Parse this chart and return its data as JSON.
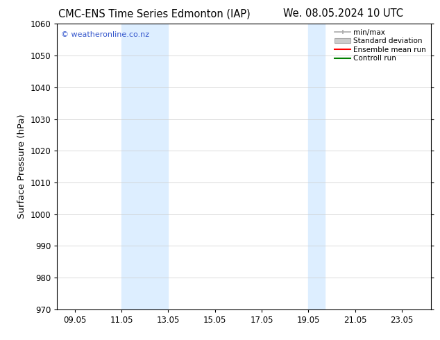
{
  "title_left": "CMC-ENS Time Series Edmonton (IAP)",
  "title_right": "We. 08.05.2024 10 UTC",
  "ylabel": "Surface Pressure (hPa)",
  "ylim": [
    970,
    1060
  ],
  "yticks": [
    970,
    980,
    990,
    1000,
    1010,
    1020,
    1030,
    1040,
    1050,
    1060
  ],
  "xlim_start": 8.3,
  "xlim_end": 24.3,
  "xticks": [
    9.05,
    11.05,
    13.05,
    15.05,
    17.05,
    19.05,
    21.05,
    23.05
  ],
  "xticklabels": [
    "09.05",
    "11.05",
    "13.05",
    "15.05",
    "17.05",
    "19.05",
    "21.05",
    "23.05"
  ],
  "shaded_regions": [
    {
      "xmin": 11.05,
      "xmax": 13.05
    },
    {
      "xmin": 19.05,
      "xmax": 19.75
    }
  ],
  "shaded_color": "#ddeeff",
  "watermark_text": "© weatheronline.co.nz",
  "watermark_color": "#3355cc",
  "legend_labels": [
    "min/max",
    "Standard deviation",
    "Ensemble mean run",
    "Controll run"
  ],
  "legend_colors": [
    "#aaaaaa",
    "#bbbbbb",
    "#ff0000",
    "#008000"
  ],
  "bg_color": "#ffffff",
  "plot_bg_color": "#ffffff",
  "grid_color": "#cccccc",
  "tick_label_fontsize": 8.5,
  "title_fontsize": 10.5,
  "ylabel_fontsize": 9.5
}
